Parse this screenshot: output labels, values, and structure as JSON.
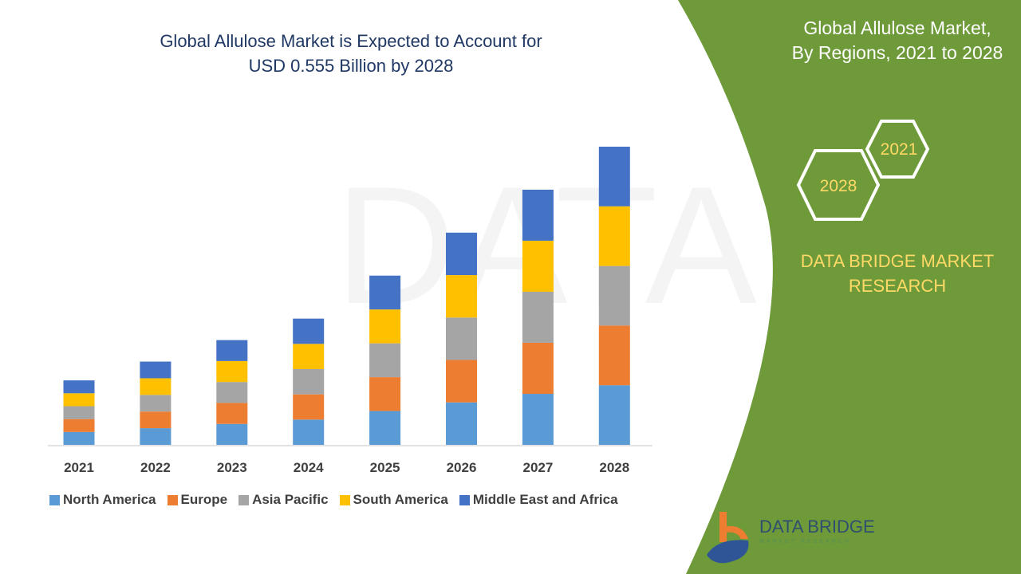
{
  "header": {
    "title_line1": "Global Allulose Market is Expected to Account for",
    "title_line2": "USD 0.555 Billion by 2028"
  },
  "side_panel": {
    "title_line1": "Global Allulose Market,",
    "title_line2": "By Regions, 2021 to 2028",
    "hex_start": "2021",
    "hex_end": "2028",
    "brand_line1": "DATA BRIDGE MARKET",
    "brand_line2": "RESEARCH",
    "logo_text": "DATA BRIDGE",
    "logo_subtext": "MARKET RESEARCH",
    "panel_color": "#6e9a3a"
  },
  "watermark": "DATA BRIDGE MARKET RESEARCH",
  "chart_data": {
    "type": "bar",
    "stacked": true,
    "title": "Global Allulose Market is Expected to Account for USD 0.555 Billion by 2028",
    "xlabel": "",
    "ylabel": "",
    "categories": [
      "2021",
      "2022",
      "2023",
      "2024",
      "2025",
      "2026",
      "2027",
      "2028"
    ],
    "ylim": [
      0,
      0.555
    ],
    "grid": false,
    "legend_position": "bottom",
    "series": [
      {
        "name": "North America",
        "color": "#5b9bd5",
        "values": [
          0.024,
          0.031,
          0.039,
          0.047,
          0.063,
          0.079,
          0.095,
          0.111
        ]
      },
      {
        "name": "Europe",
        "color": "#ed7d31",
        "values": [
          0.024,
          0.031,
          0.039,
          0.047,
          0.063,
          0.079,
          0.095,
          0.111
        ]
      },
      {
        "name": "Asia Pacific",
        "color": "#a5a5a5",
        "values": [
          0.024,
          0.031,
          0.039,
          0.047,
          0.063,
          0.079,
          0.095,
          0.111
        ]
      },
      {
        "name": "South America",
        "color": "#ffc000",
        "values": [
          0.024,
          0.031,
          0.039,
          0.047,
          0.063,
          0.079,
          0.095,
          0.111
        ]
      },
      {
        "name": "Middle East and Africa",
        "color": "#4472c4",
        "values": [
          0.024,
          0.031,
          0.039,
          0.047,
          0.063,
          0.079,
          0.095,
          0.111
        ]
      }
    ]
  }
}
